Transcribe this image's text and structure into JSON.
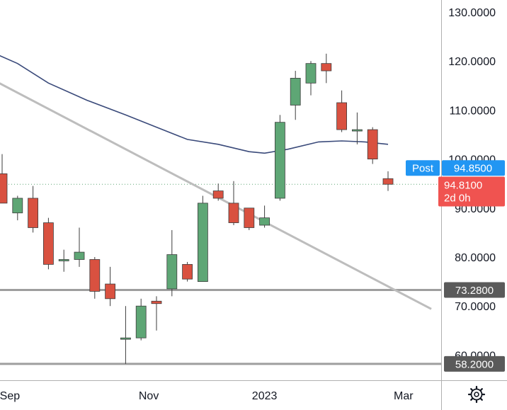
{
  "chart_data": {
    "type": "candlestick",
    "y_ticks": [
      "130.0000",
      "120.0000",
      "110.0000",
      "100.0000",
      "90.0000",
      "80.0000",
      "70.0000",
      "60.0000"
    ],
    "y_tick_values": [
      130,
      120,
      110,
      100,
      90,
      80,
      70,
      60
    ],
    "ylim": [
      56.9,
      132.1
    ],
    "x_labels": [
      "Sep",
      "Nov",
      "2023",
      "Mar"
    ],
    "x_label_candle_index": [
      0.5,
      9.5,
      17.0,
      26.0
    ],
    "candles": [
      {
        "open": 97.0,
        "high": 101.0,
        "low": 91.0,
        "close": 91.0
      },
      {
        "open": 89.0,
        "high": 92.5,
        "low": 87.5,
        "close": 92.0
      },
      {
        "open": 92.0,
        "high": 94.5,
        "low": 85.0,
        "close": 86.0
      },
      {
        "open": 87.0,
        "high": 88.0,
        "low": 77.5,
        "close": 78.5
      },
      {
        "open": 79.5,
        "high": 81.5,
        "low": 77.0,
        "close": 79.5
      },
      {
        "open": 79.5,
        "high": 86.0,
        "low": 78.0,
        "close": 81.0
      },
      {
        "open": 79.5,
        "high": 80.0,
        "low": 71.5,
        "close": 73.0
      },
      {
        "open": 74.5,
        "high": 78.0,
        "low": 70.0,
        "close": 71.5
      },
      {
        "open": 63.5,
        "high": 70.0,
        "low": 58.2,
        "close": 63.5
      },
      {
        "open": 63.5,
        "high": 71.5,
        "low": 63.0,
        "close": 70.0
      },
      {
        "open": 71.0,
        "high": 72.0,
        "low": 65.0,
        "close": 70.5
      },
      {
        "open": 73.5,
        "high": 85.5,
        "low": 72.0,
        "close": 80.5
      },
      {
        "open": 78.5,
        "high": 79.0,
        "low": 75.0,
        "close": 75.5
      },
      {
        "open": 75.0,
        "high": 92.5,
        "low": 75.0,
        "close": 91.0
      },
      {
        "open": 93.5,
        "high": 95.0,
        "low": 91.5,
        "close": 92.0
      },
      {
        "open": 91.0,
        "high": 95.5,
        "low": 86.5,
        "close": 87.0
      },
      {
        "open": 90.0,
        "high": 90.0,
        "low": 85.5,
        "close": 86.0
      },
      {
        "open": 86.5,
        "high": 90.5,
        "low": 86.0,
        "close": 88.0
      },
      {
        "open": 92.0,
        "high": 109.0,
        "low": 91.5,
        "close": 107.5
      },
      {
        "open": 111.0,
        "high": 118.0,
        "low": 108.0,
        "close": 116.5
      },
      {
        "open": 115.5,
        "high": 120.0,
        "low": 113.0,
        "close": 119.5
      },
      {
        "open": 119.5,
        "high": 121.5,
        "low": 115.5,
        "close": 118.0
      },
      {
        "open": 111.5,
        "high": 114.0,
        "low": 105.5,
        "close": 106.0
      },
      {
        "open": 106.0,
        "high": 109.5,
        "low": 103.0,
        "close": 106.0
      },
      {
        "open": 106.0,
        "high": 106.5,
        "low": 99.0,
        "close": 100.0
      },
      {
        "open": 96.0,
        "high": 97.5,
        "low": 93.5,
        "close": 94.85
      }
    ],
    "moving_average": [
      {
        "x": -0.8,
        "y": 122.0
      },
      {
        "x": 1.0,
        "y": 119.5
      },
      {
        "x": 3.0,
        "y": 115.5
      },
      {
        "x": 5.5,
        "y": 112.0
      },
      {
        "x": 8.0,
        "y": 109.0
      },
      {
        "x": 10.0,
        "y": 106.5
      },
      {
        "x": 12.0,
        "y": 104.0
      },
      {
        "x": 14.0,
        "y": 103.0
      },
      {
        "x": 16.0,
        "y": 101.5
      },
      {
        "x": 17.0,
        "y": 101.2
      },
      {
        "x": 18.5,
        "y": 102.0
      },
      {
        "x": 20.5,
        "y": 103.5
      },
      {
        "x": 22.0,
        "y": 103.7
      },
      {
        "x": 23.5,
        "y": 103.5
      },
      {
        "x": 25.0,
        "y": 103.0
      }
    ],
    "trendline": [
      {
        "x": -0.8,
        "y": 116.5
      },
      {
        "x": 27.8,
        "y": 69.4
      }
    ],
    "horizontal_levels": [
      {
        "label": "73.2800",
        "value": 73.28
      },
      {
        "label": "58.2000",
        "value": 58.2
      }
    ],
    "last_price_line": 94.85,
    "price_tags": [
      {
        "kind": "post",
        "name": "Post",
        "value_label": "94.8500",
        "value": 94.85,
        "color": "#2196f3"
      },
      {
        "kind": "last",
        "value_label": "94.8100",
        "countdown": "2d 0h",
        "value": 94.81,
        "color": "#f05350"
      }
    ],
    "colors": {
      "up": "#5ea675",
      "down": "#d95140",
      "wick": "#3d3d3d",
      "moving_average": "#3a4a7a",
      "trendline": "#bdbdbd",
      "level": "#9e9e9e",
      "dotted": "#5ea675",
      "axis_line": "#b0b0b0",
      "level_tag_bg": "#5a5a5a"
    }
  },
  "settings_icon": "gear-icon"
}
